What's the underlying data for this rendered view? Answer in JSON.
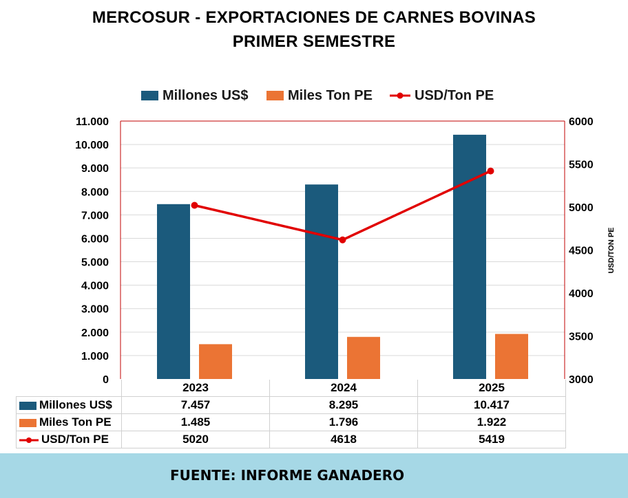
{
  "title_line1": "MERCOSUR - EXPORTACIONES DE CARNES BOVINAS",
  "title_line2": "PRIMER SEMESTRE",
  "footer": "FUENTE: INFORME GANADERO",
  "colors": {
    "millones": "#1b5a7c",
    "miles": "#eb7434",
    "usd": "#e10000",
    "axis_border": "#c00000",
    "footer_bg": "#a6d8e6"
  },
  "chart_data": {
    "type": "bar",
    "categories": [
      "2023",
      "2024",
      "2025"
    ],
    "series": [
      {
        "name": "Millones US$",
        "type": "bar",
        "axis": "left",
        "values": [
          7457,
          8295,
          10417
        ],
        "labels": [
          "7.457",
          "8.295",
          "10.417"
        ]
      },
      {
        "name": "Miles Ton PE",
        "type": "bar",
        "axis": "left",
        "values": [
          1485,
          1796,
          1922
        ],
        "labels": [
          "1.485",
          "1.796",
          "1.922"
        ]
      },
      {
        "name": "USD/Ton PE",
        "type": "line",
        "axis": "right",
        "values": [
          5020,
          4618,
          5419
        ],
        "labels": [
          "5020",
          "4618",
          "5419"
        ]
      }
    ],
    "y_left": {
      "min": 0,
      "max": 11000,
      "ticks": [
        "0",
        "1.000",
        "2.000",
        "3.000",
        "4.000",
        "5.000",
        "6.000",
        "7.000",
        "8.000",
        "9.000",
        "10.000",
        "11.000"
      ]
    },
    "y_right": {
      "min": 3000,
      "max": 6000,
      "label": "USD/TON PE",
      "ticks": [
        "3000",
        "3500",
        "4000",
        "4500",
        "5000",
        "5500",
        "6000"
      ]
    },
    "grid": true,
    "legend": "top-center",
    "data_table": true
  }
}
